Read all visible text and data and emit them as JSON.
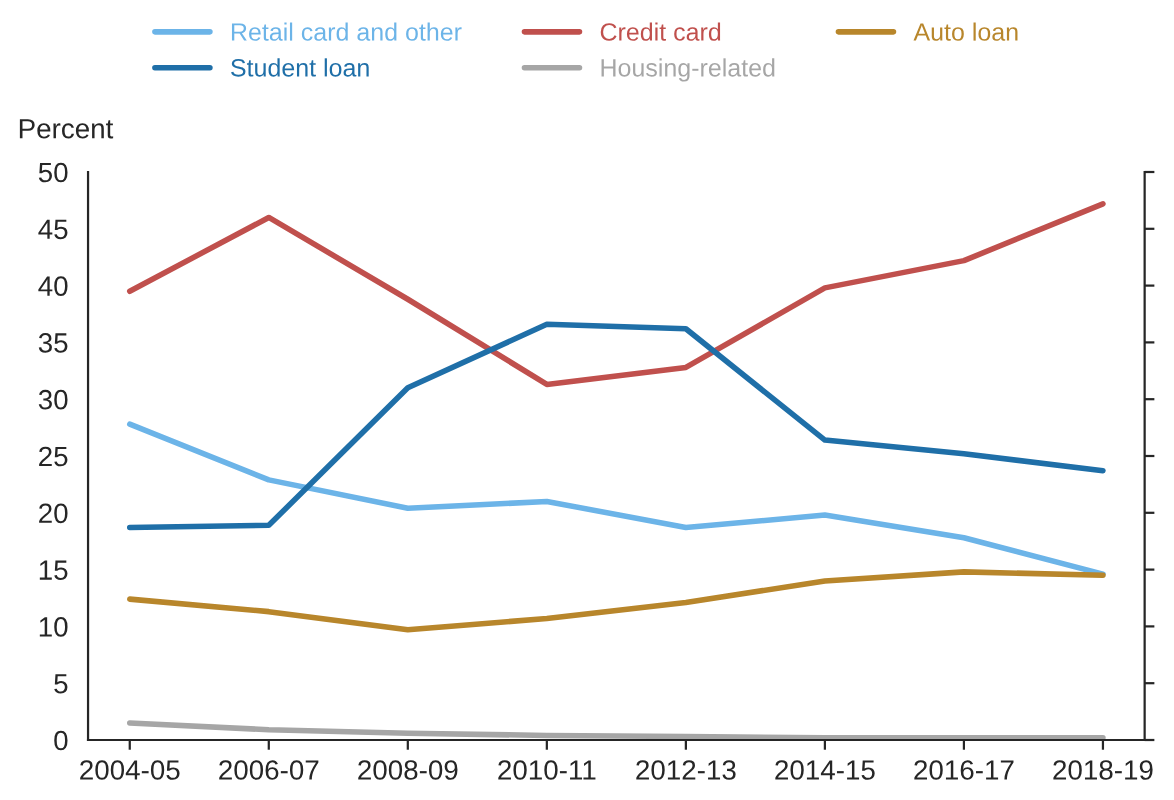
{
  "chart_data": {
    "type": "line",
    "ylabel": "Percent",
    "categories": [
      "2004-05",
      "2006-07",
      "2008-09",
      "2010-11",
      "2012-13",
      "2014-15",
      "2016-17",
      "2018-19"
    ],
    "series": [
      {
        "name": "Retail card and other",
        "color": "#6cb4e8",
        "values": [
          27.8,
          22.9,
          20.4,
          21,
          18.7,
          19.8,
          17.8,
          14.6
        ]
      },
      {
        "name": "Credit card",
        "color": "#c0504d",
        "values": [
          39.5,
          46,
          38.8,
          31.3,
          32.8,
          39.8,
          42.2,
          47.2
        ]
      },
      {
        "name": "Auto loan",
        "color": "#b8862b",
        "values": [
          12.4,
          11.3,
          9.7,
          10.7,
          12.1,
          14,
          14.8,
          14.5
        ]
      },
      {
        "name": "Student loan",
        "color": "#1f6fa8",
        "values": [
          18.7,
          18.9,
          31,
          36.6,
          36.2,
          26.4,
          25.2,
          23.7
        ]
      },
      {
        "name": "Housing-related",
        "color": "#a6a6a6",
        "values": [
          1.5,
          0.9,
          0.6,
          0.4,
          0.3,
          0.2,
          0.2,
          0.2
        ]
      }
    ],
    "ylim": [
      0,
      50
    ],
    "yticks": [
      0,
      5,
      10,
      15,
      20,
      25,
      30,
      35,
      40,
      45,
      50
    ],
    "grid": false,
    "legend": "top",
    "marker": "none",
    "line_style": "solid"
  }
}
